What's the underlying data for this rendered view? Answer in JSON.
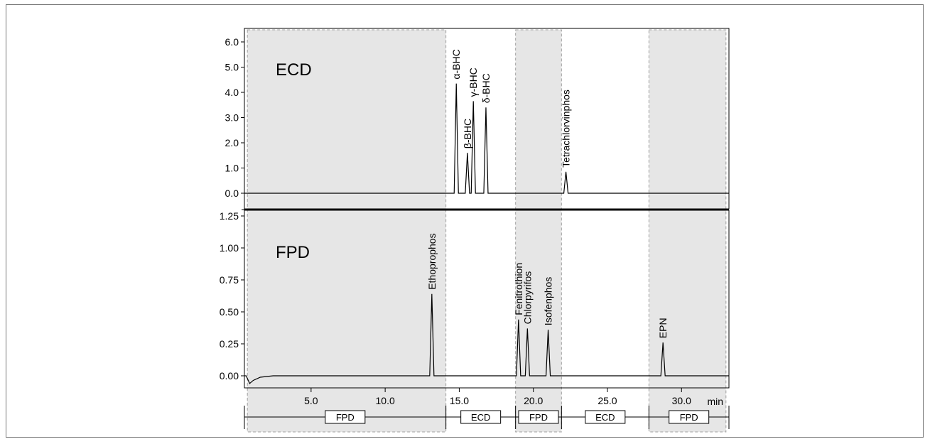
{
  "chart_data": [
    {
      "type": "line",
      "panel": "top",
      "title": "ECD",
      "xlim": [
        0.5,
        33.2
      ],
      "ylim": [
        -0.2,
        6.3
      ],
      "yticks": [
        "0.0",
        "1.0",
        "2.0",
        "3.0",
        "4.0",
        "5.0",
        "6.0"
      ],
      "peaks": [
        {
          "name": "α-BHC",
          "x": 14.8,
          "y": 4.35
        },
        {
          "name": "β-BHC",
          "x": 15.55,
          "y": 1.6
        },
        {
          "name": "γ-BHC",
          "x": 15.95,
          "y": 3.65
        },
        {
          "name": "δ-BHC",
          "x": 16.8,
          "y": 3.4
        },
        {
          "name": "Tetrachlorvinphos",
          "x": 22.2,
          "y": 0.85
        }
      ],
      "shaded_regions": [
        [
          0.7,
          14.1
        ],
        [
          18.8,
          21.9
        ],
        [
          27.8,
          33.0
        ]
      ]
    },
    {
      "type": "line",
      "panel": "bottom",
      "title": "FPD",
      "xlim": [
        0.5,
        33.2
      ],
      "ylim": [
        -0.07,
        1.3
      ],
      "yticks": [
        "0.00",
        "0.25",
        "0.50",
        "0.75",
        "1.00",
        "1.25"
      ],
      "dip": {
        "x": 1.0,
        "y": -0.06
      },
      "peaks": [
        {
          "name": "Ethoprophos",
          "x": 13.15,
          "y": 0.64
        },
        {
          "name": "Fenitrothion",
          "x": 19.0,
          "y": 0.44
        },
        {
          "name": "Chlorpyrifos",
          "x": 19.6,
          "y": 0.37
        },
        {
          "name": "Isofenphos",
          "x": 21.0,
          "y": 0.36
        },
        {
          "name": "EPN",
          "x": 28.75,
          "y": 0.26
        }
      ],
      "shaded_regions": [
        [
          0.7,
          14.1
        ],
        [
          18.8,
          21.9
        ],
        [
          27.8,
          33.0
        ]
      ]
    }
  ],
  "x_axis": {
    "ticks": [
      5.0,
      10.0,
      15.0,
      20.0,
      25.0,
      30.0
    ],
    "tick_labels": [
      "5.0",
      "10.0",
      "15.0",
      "20.0",
      "25.0",
      "30.0"
    ],
    "unit": "min"
  },
  "detector_segments": [
    {
      "label": "FPD",
      "start": 0.5,
      "end": 14.1
    },
    {
      "label": "ECD",
      "start": 14.1,
      "end": 18.8
    },
    {
      "label": "FPD",
      "start": 18.8,
      "end": 21.9
    },
    {
      "label": "ECD",
      "start": 21.9,
      "end": 27.8
    },
    {
      "label": "FPD",
      "start": 27.8,
      "end": 33.2
    }
  ],
  "colors": {
    "shade": "#e6e6e6",
    "line": "#000000",
    "region_border": "#a0a0a0"
  }
}
